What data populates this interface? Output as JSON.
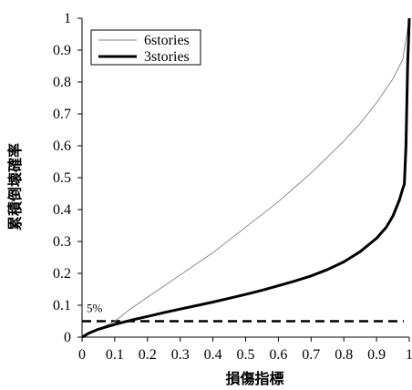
{
  "chart_data": {
    "type": "line",
    "xlabel": "損傷指標",
    "ylabel": "累積倒壊確率",
    "xlim": [
      0,
      1
    ],
    "ylim": [
      0,
      1
    ],
    "x_ticks": [
      "0",
      "0.1",
      "0.2",
      "0.3",
      "0.4",
      "0.5",
      "0.6",
      "0.7",
      "0.8",
      "0.9",
      "1"
    ],
    "y_ticks": [
      "0",
      "0.1",
      "0.2",
      "0.3",
      "0.4",
      "0.5",
      "0.6",
      "0.7",
      "0.8",
      "0.9",
      "1"
    ],
    "grid": false,
    "legend_position": "top-left",
    "series": [
      {
        "name": "6stories",
        "color": "#808080",
        "style": "thin",
        "x": [
          0,
          0.02,
          0.05,
          0.1,
          0.15,
          0.2,
          0.25,
          0.3,
          0.35,
          0.4,
          0.45,
          0.5,
          0.55,
          0.6,
          0.65,
          0.7,
          0.75,
          0.8,
          0.85,
          0.9,
          0.95,
          0.98,
          1.0
        ],
        "y": [
          0,
          0.01,
          0.025,
          0.05,
          0.09,
          0.125,
          0.16,
          0.195,
          0.23,
          0.265,
          0.305,
          0.345,
          0.385,
          0.425,
          0.47,
          0.515,
          0.565,
          0.615,
          0.67,
          0.735,
          0.81,
          0.87,
          1.0
        ]
      },
      {
        "name": "3stories",
        "color": "#000000",
        "style": "thick",
        "x": [
          0,
          0.02,
          0.05,
          0.1,
          0.15,
          0.2,
          0.25,
          0.3,
          0.35,
          0.4,
          0.45,
          0.5,
          0.55,
          0.6,
          0.65,
          0.7,
          0.75,
          0.8,
          0.85,
          0.9,
          0.93,
          0.95,
          0.97,
          0.98,
          0.985,
          0.99,
          0.995,
          1.0
        ],
        "y": [
          0,
          0.012,
          0.025,
          0.04,
          0.053,
          0.065,
          0.077,
          0.088,
          0.099,
          0.11,
          0.122,
          0.134,
          0.147,
          0.161,
          0.176,
          0.192,
          0.212,
          0.236,
          0.268,
          0.31,
          0.345,
          0.38,
          0.43,
          0.465,
          0.48,
          0.6,
          0.85,
          1.0
        ]
      }
    ],
    "reference_line": {
      "y": 0.05,
      "style": "dashed",
      "label": "5%"
    }
  }
}
